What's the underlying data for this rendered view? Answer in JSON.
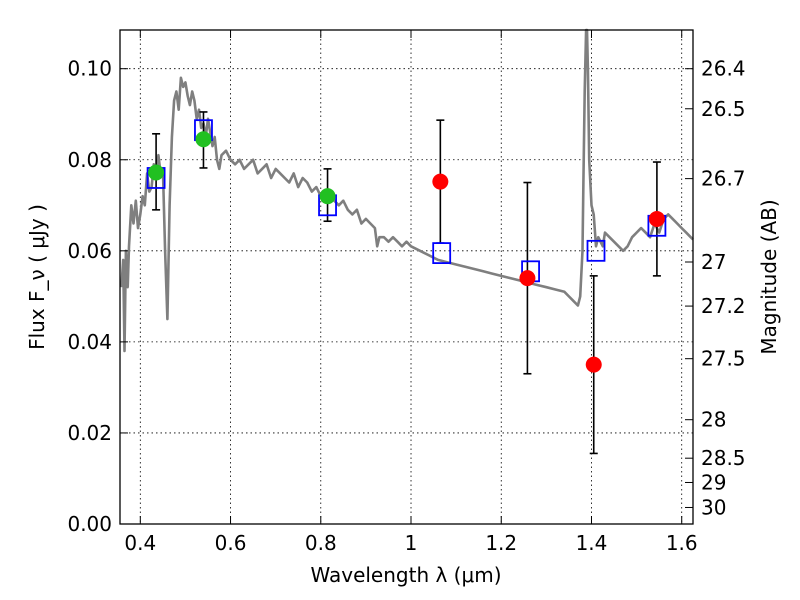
{
  "chart_data": {
    "type": "scatter",
    "xlabel": "Wavelength λ (μm)",
    "ylabel": "Flux F_ν ( μJy )",
    "y2label": "Magnitude (AB)",
    "xlim": [
      0.355,
      1.625
    ],
    "ylim": [
      0.0,
      0.1085
    ],
    "x_ticks": [
      "0.4",
      "0.6",
      "0.8",
      "1",
      "1.2",
      "1.4",
      "1.6"
    ],
    "y_ticks": [
      "0.00",
      "0.02",
      "0.04",
      "0.06",
      "0.08",
      "0.10"
    ],
    "y2_ticks": [
      "26.4",
      "26.5",
      "26.7",
      "27",
      "27.2",
      "27.5",
      "28",
      "28.5",
      "29",
      "30"
    ],
    "grid": true,
    "colors": {
      "spectrum": "#7f7f7f",
      "detection": "#21c021",
      "upper_or_ir": "#ff0000",
      "model": "#0000ff",
      "errorbar": "#000000"
    },
    "series": [
      {
        "kind": "spectrum",
        "x": [
          0.358,
          0.362,
          0.365,
          0.368,
          0.372,
          0.375,
          0.38,
          0.385,
          0.39,
          0.395,
          0.4,
          0.405,
          0.41,
          0.415,
          0.42,
          0.425,
          0.43,
          0.435,
          0.44,
          0.445,
          0.45,
          0.455,
          0.46,
          0.465,
          0.47,
          0.475,
          0.48,
          0.485,
          0.49,
          0.495,
          0.5,
          0.505,
          0.51,
          0.515,
          0.52,
          0.525,
          0.53,
          0.535,
          0.54,
          0.545,
          0.55,
          0.555,
          0.56,
          0.565,
          0.57,
          0.575,
          0.58,
          0.59,
          0.6,
          0.61,
          0.62,
          0.63,
          0.64,
          0.65,
          0.66,
          0.67,
          0.68,
          0.69,
          0.7,
          0.71,
          0.72,
          0.73,
          0.74,
          0.75,
          0.76,
          0.77,
          0.78,
          0.79,
          0.8,
          0.81,
          0.82,
          0.83,
          0.84,
          0.85,
          0.86,
          0.87,
          0.88,
          0.89,
          0.9,
          0.91,
          0.92,
          0.925,
          0.93,
          0.94,
          0.95,
          0.96,
          0.97,
          0.98,
          0.99,
          1.0,
          1.02,
          1.04,
          1.06,
          1.08,
          1.1,
          1.12,
          1.14,
          1.16,
          1.18,
          1.2,
          1.22,
          1.24,
          1.26,
          1.28,
          1.3,
          1.32,
          1.34,
          1.35,
          1.36,
          1.37,
          1.375,
          1.38,
          1.382,
          1.385,
          1.388,
          1.39,
          1.392,
          1.395,
          1.4,
          1.405,
          1.41,
          1.415,
          1.42,
          1.425,
          1.43,
          1.44,
          1.45,
          1.46,
          1.47,
          1.48,
          1.49,
          1.5,
          1.51,
          1.52,
          1.53,
          1.54,
          1.55,
          1.56,
          1.57,
          1.58,
          1.59,
          1.6,
          1.61,
          1.62,
          1.625
        ],
        "y": [
          0.052,
          0.058,
          0.038,
          0.06,
          0.052,
          0.061,
          0.07,
          0.066,
          0.071,
          0.065,
          0.068,
          0.072,
          0.07,
          0.077,
          0.073,
          0.074,
          0.079,
          0.076,
          0.081,
          0.077,
          0.078,
          0.06,
          0.045,
          0.07,
          0.085,
          0.093,
          0.095,
          0.091,
          0.098,
          0.096,
          0.097,
          0.094,
          0.092,
          0.095,
          0.093,
          0.089,
          0.091,
          0.087,
          0.088,
          0.085,
          0.089,
          0.086,
          0.083,
          0.085,
          0.08,
          0.078,
          0.081,
          0.082,
          0.08,
          0.079,
          0.08,
          0.078,
          0.079,
          0.08,
          0.077,
          0.078,
          0.079,
          0.076,
          0.078,
          0.077,
          0.076,
          0.075,
          0.077,
          0.074,
          0.076,
          0.075,
          0.073,
          0.074,
          0.072,
          0.071,
          0.073,
          0.071,
          0.07,
          0.071,
          0.069,
          0.068,
          0.069,
          0.066,
          0.067,
          0.066,
          0.065,
          0.061,
          0.063,
          0.063,
          0.062,
          0.063,
          0.062,
          0.061,
          0.062,
          0.061,
          0.06,
          0.059,
          0.058,
          0.0575,
          0.057,
          0.0565,
          0.056,
          0.0555,
          0.055,
          0.0545,
          0.054,
          0.0535,
          0.053,
          0.0525,
          0.052,
          0.0515,
          0.051,
          0.05,
          0.049,
          0.048,
          0.05,
          0.06,
          0.075,
          0.095,
          0.115,
          0.12,
          0.1,
          0.08,
          0.07,
          0.068,
          0.061,
          0.063,
          0.062,
          0.061,
          0.064,
          0.063,
          0.062,
          0.061,
          0.06,
          0.061,
          0.063,
          0.064,
          0.065,
          0.064,
          0.063,
          0.066,
          0.064,
          0.067,
          0.068,
          0.067,
          0.066,
          0.065,
          0.064,
          0.063,
          0.0625
        ]
      },
      {
        "kind": "detections",
        "x": [
          0.435,
          0.54,
          0.815
        ],
        "y": [
          0.0772,
          0.0845,
          0.072
        ],
        "yerr_low": [
          0.0082,
          0.0063,
          0.0055
        ],
        "yerr_high": [
          0.0085,
          0.006,
          0.006
        ]
      },
      {
        "kind": "red_points",
        "x": [
          1.065,
          1.258,
          1.405,
          1.545
        ],
        "y": [
          0.0752,
          0.054,
          0.035,
          0.067
        ],
        "yerr_low": [
          0.0135,
          0.021,
          0.0195,
          0.0125
        ],
        "yerr_high": [
          0.0135,
          0.021,
          0.0195,
          0.0125
        ]
      },
      {
        "kind": "model_boxes",
        "x": [
          0.435,
          0.54,
          0.815,
          1.068,
          1.265,
          1.41,
          1.545
        ],
        "y": [
          0.076,
          0.0865,
          0.07,
          0.0595,
          0.0555,
          0.06,
          0.0655
        ]
      }
    ]
  }
}
